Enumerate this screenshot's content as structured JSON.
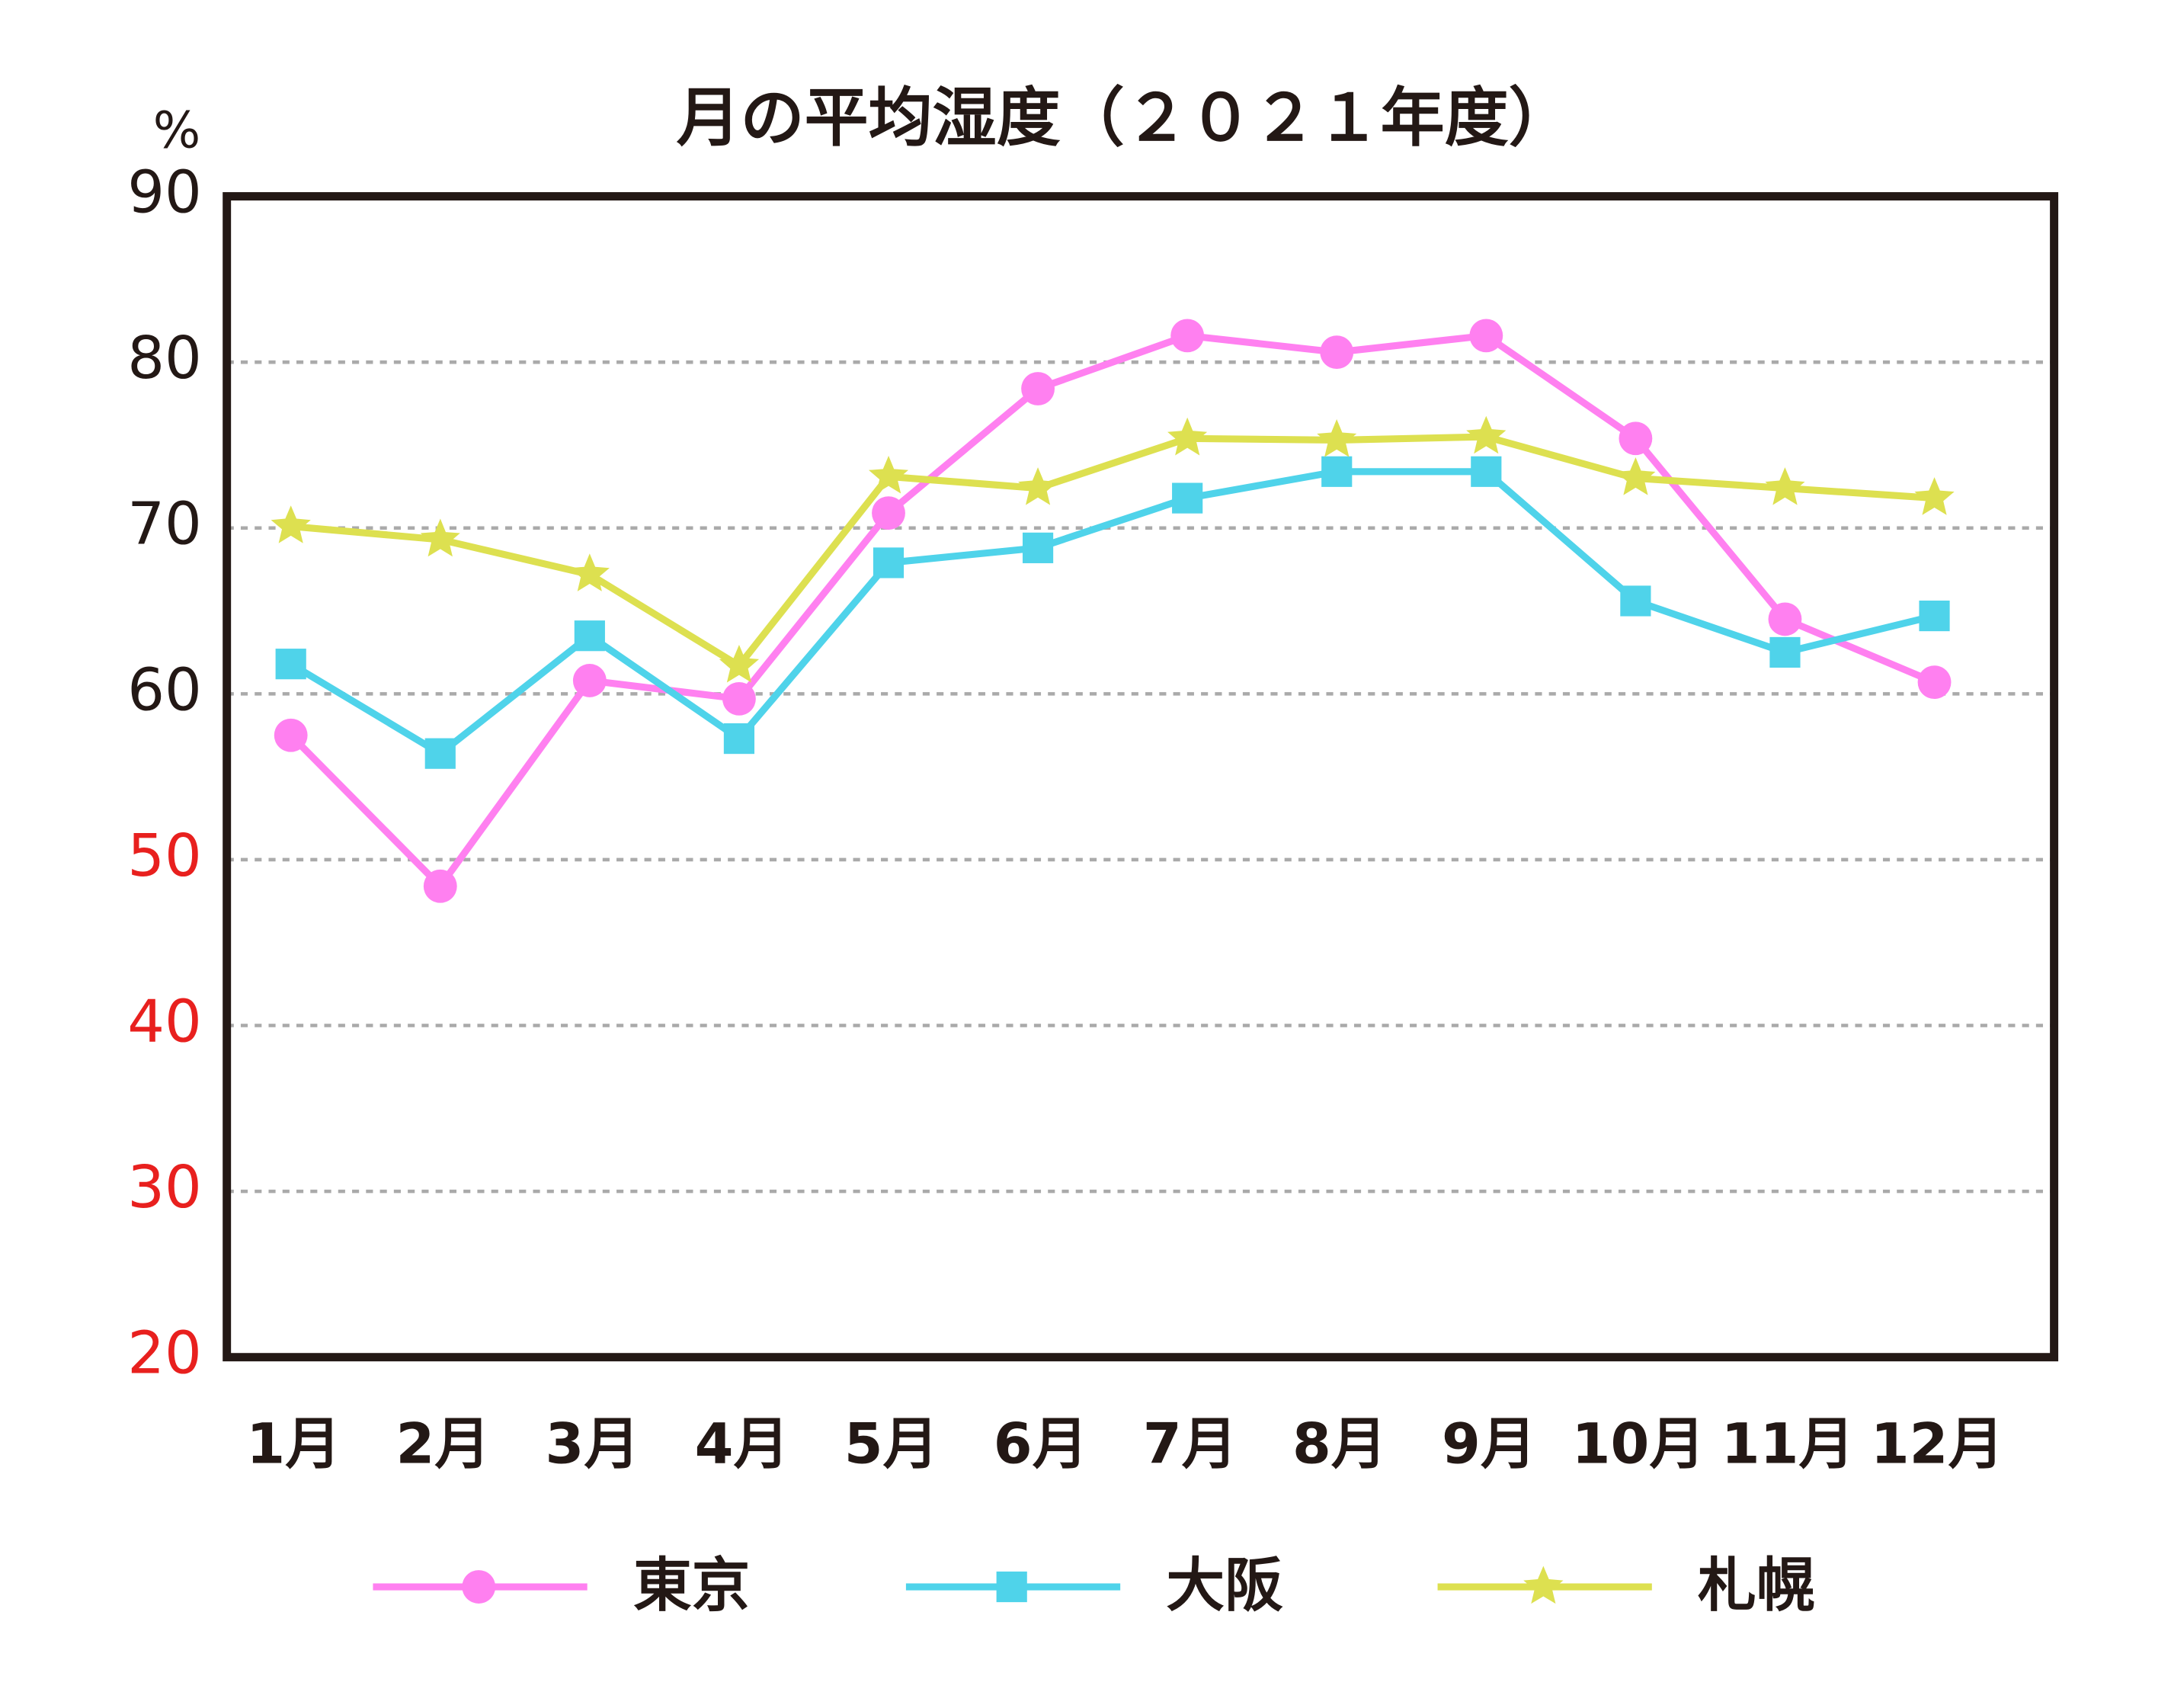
{
  "chart_data": {
    "type": "line",
    "title": "月の平均湿度（２０２１年度）",
    "y_label": "%",
    "categories": [
      "1月",
      "2月",
      "3月",
      "4月",
      "5月",
      "6月",
      "7月",
      "8月",
      "9月",
      "10月",
      "11月",
      "12月"
    ],
    "series": [
      {
        "name": "東京",
        "color": "#ff80f0",
        "marker": "circle",
        "values": [
          57.5,
          48.4,
          60.8,
          59.7,
          70.9,
          78.4,
          81.6,
          80.6,
          81.6,
          75.4,
          64.5,
          60.7
        ]
      },
      {
        "name": "大阪",
        "color": "#4fd3ea",
        "marker": "square",
        "values": [
          61.8,
          56.4,
          63.5,
          57.3,
          67.9,
          68.8,
          71.8,
          73.4,
          73.4,
          65.6,
          62.5,
          64.7
        ]
      },
      {
        "name": "札幌",
        "color": "#dde050",
        "marker": "star",
        "values": [
          70.1,
          69.3,
          67.2,
          61.7,
          73.1,
          72.4,
          75.4,
          75.3,
          75.5,
          73.0,
          72.4,
          71.8
        ]
      }
    ],
    "ylim": [
      20,
      90
    ],
    "yticks": [
      20,
      30,
      40,
      50,
      60,
      70,
      80,
      90
    ],
    "ytick_label_colors": [
      "#e8201e",
      "#e8201e",
      "#e8201e",
      "#e8201e",
      "#231815",
      "#231815",
      "#231815",
      "#231815"
    ],
    "grid": true,
    "legend": "bottom"
  }
}
